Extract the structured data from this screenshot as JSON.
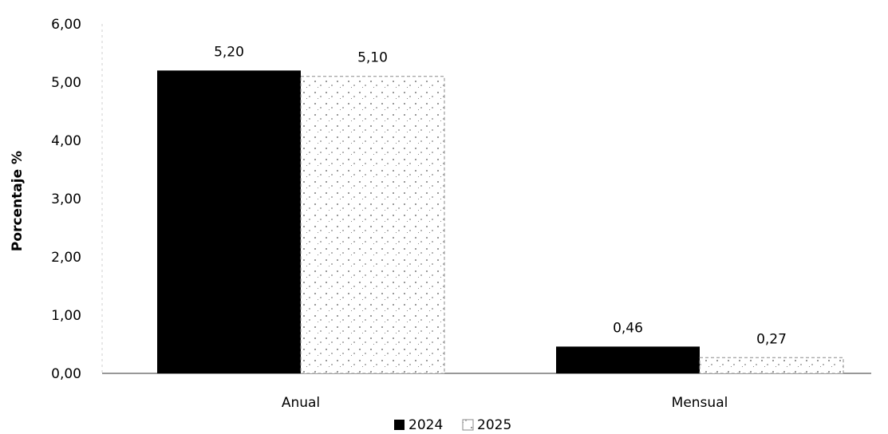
{
  "chart_data": {
    "type": "bar",
    "title": "",
    "xlabel": "",
    "ylabel": "Porcentaje %",
    "categories": [
      "Anual",
      "Mensual"
    ],
    "series": [
      {
        "name": "2024",
        "values": [
          5.2,
          0.46
        ],
        "labels": [
          "5,20",
          "0,46"
        ],
        "color": "#000000"
      },
      {
        "name": "2025",
        "values": [
          5.1,
          0.27
        ],
        "labels": [
          "5,10",
          "0,27"
        ],
        "color": "#ffffff",
        "pattern": "speckled-gray"
      }
    ],
    "ylim": [
      0,
      6
    ],
    "yticks": [
      0,
      1,
      2,
      3,
      4,
      5,
      6
    ],
    "ytick_labels": [
      "0,00",
      "1,00",
      "2,00",
      "3,00",
      "4,00",
      "5,00",
      "6,00"
    ],
    "grid": false,
    "legend": "bottom-center"
  }
}
